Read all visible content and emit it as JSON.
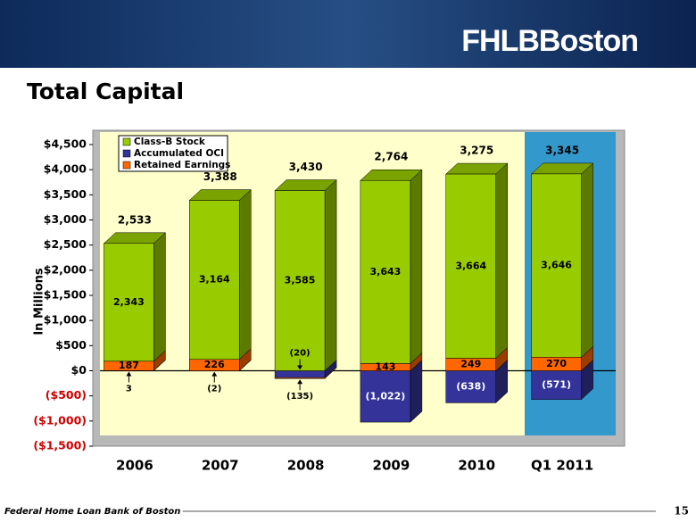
{
  "header": {
    "logo": "FHLBBoston"
  },
  "chart_data": {
    "type": "bar",
    "stacked": true,
    "title": "Total Capital",
    "y_label": "In Millions",
    "categories": [
      "2006",
      "2007",
      "2008",
      "2009",
      "2010",
      "Q1 2011"
    ],
    "series": [
      {
        "name": "Class-B Stock",
        "color": "#99cc00",
        "values": [
          2343,
          3164,
          3585,
          3643,
          3664,
          3646
        ],
        "value_labels": [
          "2,343",
          "3,164",
          "3,585",
          "3,643",
          "3,664",
          "3,646"
        ]
      },
      {
        "name": "Accumulated OCI",
        "color": "#333399",
        "values": [
          3,
          -2,
          -135,
          -1022,
          -638,
          -571
        ],
        "value_labels": [
          "3",
          "(2)",
          "(135)",
          "(1,022)",
          "(638)",
          "(571)"
        ]
      },
      {
        "name": "Retained Earnings",
        "color": "#ff6600",
        "values": [
          187,
          226,
          -20,
          143,
          249,
          270
        ],
        "value_labels": [
          "187",
          "226",
          "(20)",
          "143",
          "249",
          "270"
        ]
      }
    ],
    "totals": {
      "values": [
        2533,
        3388,
        3430,
        2764,
        3275,
        3345
      ],
      "value_labels": [
        "2,533",
        "3,388",
        "3,430",
        "2,764",
        "3,275",
        "3,345"
      ]
    },
    "ylim": [
      -1500,
      4500
    ],
    "yticks": [
      {
        "value": -1500,
        "label": "($1,500)"
      },
      {
        "value": -1000,
        "label": "($1,000)"
      },
      {
        "value": -500,
        "label": "($500)"
      },
      {
        "value": 0,
        "label": "$0"
      },
      {
        "value": 500,
        "label": "$500"
      },
      {
        "value": 1000,
        "label": "$1,000"
      },
      {
        "value": 1500,
        "label": "$1,500"
      },
      {
        "value": 2000,
        "label": "$2,000"
      },
      {
        "value": 2500,
        "label": "$2,500"
      },
      {
        "value": 3000,
        "label": "$3,000"
      },
      {
        "value": 3500,
        "label": "$3,500"
      },
      {
        "value": 4000,
        "label": "$4,000"
      },
      {
        "value": 4500,
        "label": "$4,500"
      }
    ],
    "legend": "upper left",
    "grid": false
  },
  "footer": {
    "text": "Federal Home Loan Bank of Boston",
    "page": "15"
  }
}
